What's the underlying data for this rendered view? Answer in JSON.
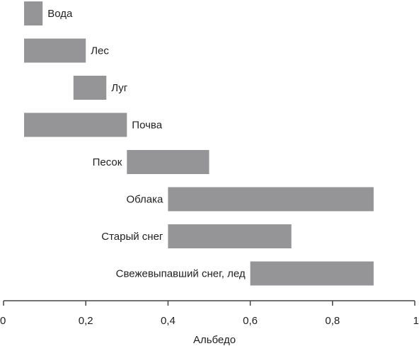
{
  "chart_data": {
    "type": "bar",
    "orientation": "horizontal-range",
    "title": "",
    "xlabel": "Альбедо",
    "ylabel": "",
    "xlim": [
      0,
      1
    ],
    "xticks": [
      "0",
      "0,2",
      "0,4",
      "0,6",
      "0,8",
      "1"
    ],
    "xtick_values": [
      0,
      0.2,
      0.4,
      0.6,
      0.8,
      1
    ],
    "grid": false,
    "legend": "none",
    "bar_color": "#959598",
    "categories": [
      "Вода",
      "Лес",
      "Луг",
      "Почва",
      "Песок",
      "Облака",
      "Старый снег",
      "Свежевыпавший снег, лед"
    ],
    "ranges": [
      [
        0.05,
        0.095
      ],
      [
        0.05,
        0.2
      ],
      [
        0.17,
        0.25
      ],
      [
        0.05,
        0.3
      ],
      [
        0.3,
        0.5
      ],
      [
        0.4,
        0.9
      ],
      [
        0.4,
        0.7
      ],
      [
        0.6,
        0.9
      ]
    ],
    "label_side": [
      "right",
      "right",
      "right",
      "right",
      "left",
      "left",
      "left",
      "left"
    ]
  }
}
